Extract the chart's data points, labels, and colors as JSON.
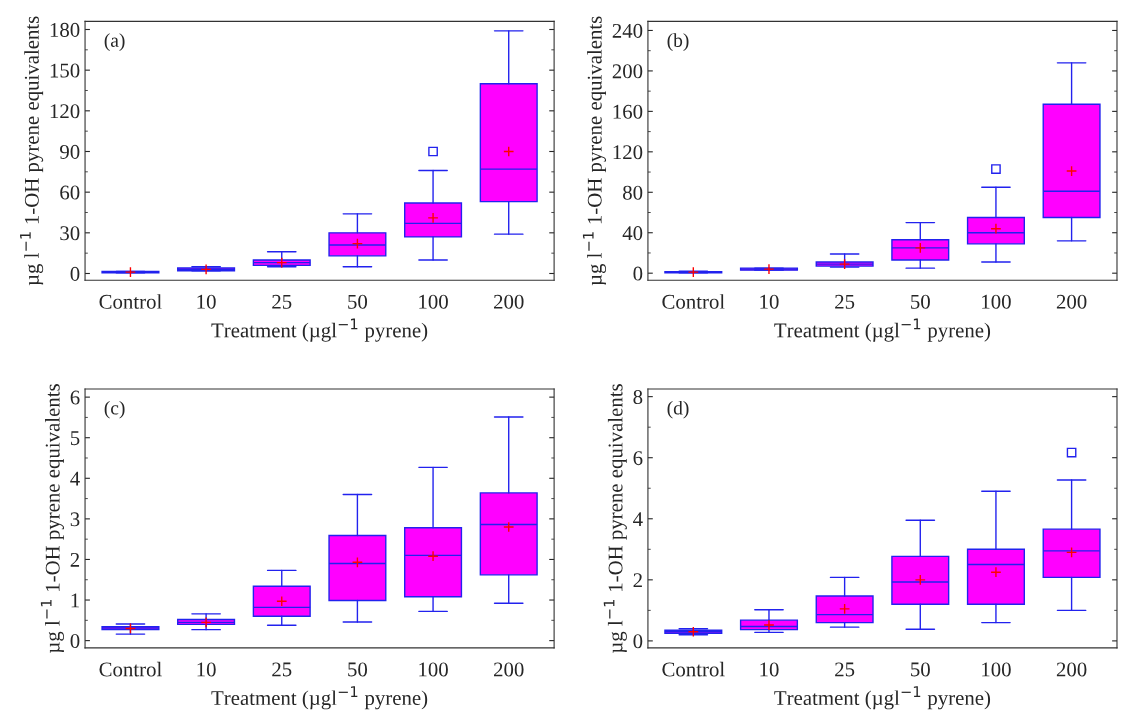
{
  "chart_data": [
    {
      "type": "box",
      "annotations": [
        "(a)"
      ],
      "xlabel": "Treatment (µgl$^{−1}$ pyrene)",
      "ylabel": "µg l$^{−1}$ 1-OH pyrene equivalents",
      "categories": [
        "Control",
        "10",
        "25",
        "50",
        "100",
        "200"
      ],
      "ylim": [
        -5,
        186
      ],
      "yticks": [
        0,
        30,
        60,
        90,
        120,
        150,
        180
      ],
      "series": [
        {
          "color": "#ff00ff",
          "boxes": [
            {
              "low": 0.5,
              "q1": 0.5,
              "median": 1,
              "q3": 1.5,
              "high": 1.5,
              "mean": 1
            },
            {
              "low": 2,
              "q1": 2,
              "median": 3,
              "q3": 4,
              "high": 5,
              "mean": 3
            },
            {
              "low": 5,
              "q1": 6,
              "median": 8,
              "q3": 10,
              "high": 16,
              "mean": 8
            },
            {
              "low": 5,
              "q1": 13,
              "median": 21,
              "q3": 30,
              "high": 44,
              "mean": 22
            },
            {
              "low": 10,
              "q1": 27,
              "median": 37,
              "q3": 52,
              "high": 76,
              "mean": 41,
              "outliers": [
                90
              ]
            },
            {
              "low": 29,
              "q1": 53,
              "median": 77,
              "q3": 140,
              "high": 179,
              "mean": 90
            }
          ]
        }
      ]
    },
    {
      "type": "box",
      "annotations": [
        "(b)"
      ],
      "xlabel": "Treatment (µgl$^{−1}$ pyrene)",
      "ylabel": "µg l$^{−1}$ 1-OH pyrene equivalents",
      "categories": [
        "Control",
        "10",
        "25",
        "50",
        "100",
        "200"
      ],
      "ylim": [
        -7,
        249
      ],
      "yticks": [
        0,
        40,
        80,
        120,
        160,
        200,
        240
      ],
      "series": [
        {
          "color": "#ff00ff",
          "boxes": [
            {
              "low": 0.5,
              "q1": 0.5,
              "median": 1,
              "q3": 1.5,
              "high": 2,
              "mean": 1
            },
            {
              "low": 3,
              "q1": 3,
              "median": 4,
              "q3": 5,
              "high": 5,
              "mean": 4
            },
            {
              "low": 6,
              "q1": 7,
              "median": 9,
              "q3": 11,
              "high": 19,
              "mean": 9
            },
            {
              "low": 5,
              "q1": 13,
              "median": 25,
              "q3": 33,
              "high": 50,
              "mean": 25
            },
            {
              "low": 11,
              "q1": 29,
              "median": 40,
              "q3": 55,
              "high": 85,
              "mean": 44,
              "outliers": [
                103
              ]
            },
            {
              "low": 32,
              "q1": 55,
              "median": 81,
              "q3": 167,
              "high": 208,
              "mean": 101
            }
          ]
        }
      ]
    },
    {
      "type": "box",
      "annotations": [
        "(c)"
      ],
      "xlabel": "Treatment (µgl$^{−1}$ pyrene)",
      "ylabel": "µg l$^{−1}$ 1-OH pyrene equivalents",
      "categories": [
        "Control",
        "10",
        "25",
        "50",
        "100",
        "200"
      ],
      "ylim": [
        -0.18,
        6.2
      ],
      "yticks": [
        0,
        1,
        2,
        3,
        4,
        5,
        6
      ],
      "series": [
        {
          "color": "#ff00ff",
          "boxes": [
            {
              "low": 0.16,
              "q1": 0.27,
              "median": 0.31,
              "q3": 0.34,
              "high": 0.41,
              "mean": 0.3
            },
            {
              "low": 0.27,
              "q1": 0.4,
              "median": 0.45,
              "q3": 0.52,
              "high": 0.66,
              "mean": 0.45
            },
            {
              "low": 0.38,
              "q1": 0.6,
              "median": 0.82,
              "q3": 1.34,
              "high": 1.73,
              "mean": 0.97
            },
            {
              "low": 0.46,
              "q1": 0.99,
              "median": 1.9,
              "q3": 2.59,
              "high": 3.6,
              "mean": 1.93
            },
            {
              "low": 0.72,
              "q1": 1.08,
              "median": 2.1,
              "q3": 2.78,
              "high": 4.27,
              "mean": 2.08
            },
            {
              "low": 0.92,
              "q1": 1.62,
              "median": 2.86,
              "q3": 3.64,
              "high": 5.51,
              "mean": 2.8
            }
          ]
        }
      ]
    },
    {
      "type": "box",
      "annotations": [
        "(d)"
      ],
      "xlabel": "Treatment (µgl$^{−1}$ pyrene)",
      "ylabel": "µg l$^{−1}$ 1-OH pyrene equivalents",
      "categories": [
        "Control",
        "10",
        "25",
        "50",
        "100",
        "200"
      ],
      "ylim": [
        -0.23,
        8.25
      ],
      "yticks": [
        0,
        2,
        4,
        6,
        8
      ],
      "series": [
        {
          "color": "#ff00ff",
          "boxes": [
            {
              "low": 0.2,
              "q1": 0.25,
              "median": 0.3,
              "q3": 0.35,
              "high": 0.4,
              "mean": 0.3
            },
            {
              "low": 0.28,
              "q1": 0.37,
              "median": 0.47,
              "q3": 0.68,
              "high": 1.02,
              "mean": 0.52
            },
            {
              "low": 0.45,
              "q1": 0.6,
              "median": 0.86,
              "q3": 1.47,
              "high": 2.08,
              "mean": 1.05
            },
            {
              "low": 0.38,
              "q1": 1.2,
              "median": 1.93,
              "q3": 2.77,
              "high": 3.95,
              "mean": 2.0
            },
            {
              "low": 0.6,
              "q1": 1.2,
              "median": 2.5,
              "q3": 3.0,
              "high": 4.9,
              "mean": 2.25
            },
            {
              "low": 1.0,
              "q1": 2.08,
              "median": 2.95,
              "q3": 3.66,
              "high": 5.27,
              "mean": 2.9,
              "outliers": [
                6.17
              ]
            }
          ]
        }
      ]
    }
  ]
}
